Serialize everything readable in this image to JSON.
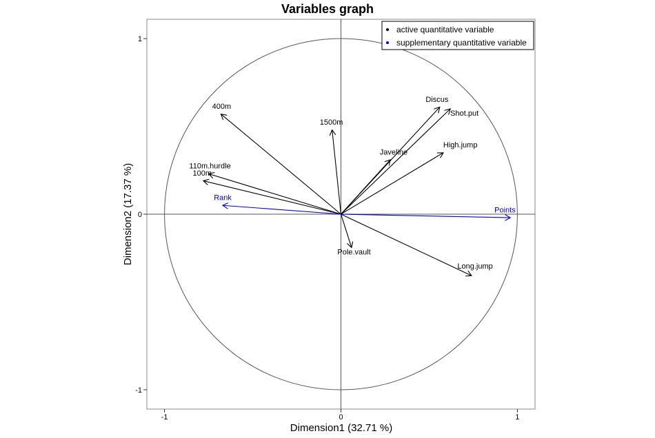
{
  "chart_data": {
    "type": "scatter",
    "subtype": "pca-correlation-circle",
    "title": "Variables graph",
    "xlabel": "Dimension1 (32.71 %)",
    "ylabel": "Dimension2 (17.37 %)",
    "xlim": [
      -1.1,
      1.1
    ],
    "ylim": [
      -1.11,
      1.11
    ],
    "xticks": [
      -1,
      0,
      1
    ],
    "yticks": [
      -1,
      0,
      1
    ],
    "xtick_labels": [
      "-1",
      "0",
      "1"
    ],
    "ytick_labels": [
      "-1",
      "0",
      "1"
    ],
    "grid": false,
    "unit_circle": true,
    "legend_position": "top-right",
    "legend": [
      {
        "label": "active  quantitative variable",
        "color": "#000000"
      },
      {
        "label": "supplementary  quantitative variable",
        "color": "#0000cc"
      }
    ],
    "series": [
      {
        "name": "active  quantitative variable",
        "color": "#000000",
        "points": [
          {
            "label": "400m",
            "x": -0.68,
            "y": 0.57
          },
          {
            "label": "1500m",
            "x": -0.05,
            "y": 0.48
          },
          {
            "label": "110m.hurdle",
            "x": -0.75,
            "y": 0.23
          },
          {
            "label": "100m",
            "x": -0.78,
            "y": 0.19
          },
          {
            "label": "Discus",
            "x": 0.56,
            "y": 0.61
          },
          {
            "label": "Shot.put",
            "x": 0.62,
            "y": 0.6
          },
          {
            "label": "Javeline",
            "x": 0.28,
            "y": 0.31
          },
          {
            "label": "High.jump",
            "x": 0.58,
            "y": 0.35
          },
          {
            "label": "Pole.vault",
            "x": 0.06,
            "y": -0.19
          },
          {
            "label": "Long.jump",
            "x": 0.74,
            "y": -0.35
          }
        ]
      },
      {
        "name": "supplementary  quantitative variable",
        "color": "#0000cc",
        "points": [
          {
            "label": "Rank",
            "x": -0.67,
            "y": 0.05
          },
          {
            "label": "Points",
            "x": 0.96,
            "y": -0.02
          }
        ]
      }
    ]
  }
}
